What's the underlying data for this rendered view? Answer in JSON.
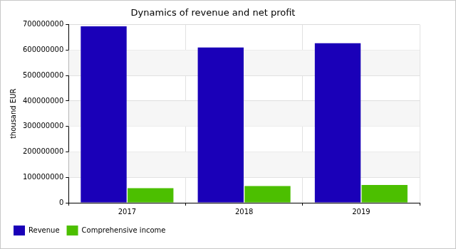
{
  "chart_data": {
    "type": "bar",
    "title": "Dynamics of revenue and net profit",
    "y_label": "thousand EUR",
    "categories": [
      "2017",
      "2018",
      "2019"
    ],
    "series": [
      {
        "name": "Revenue",
        "color": "#1a00b8",
        "values": [
          693000000,
          610000000,
          627000000
        ]
      },
      {
        "name": "Comprehensive income",
        "color": "#4cbf00",
        "values": [
          57000000,
          66000000,
          70000000
        ]
      }
    ],
    "ylim": [
      0,
      700000000
    ],
    "yticks": [
      0,
      100000000,
      200000000,
      300000000,
      400000000,
      500000000,
      600000000,
      700000000
    ],
    "grid": true,
    "legend": "bottom"
  }
}
